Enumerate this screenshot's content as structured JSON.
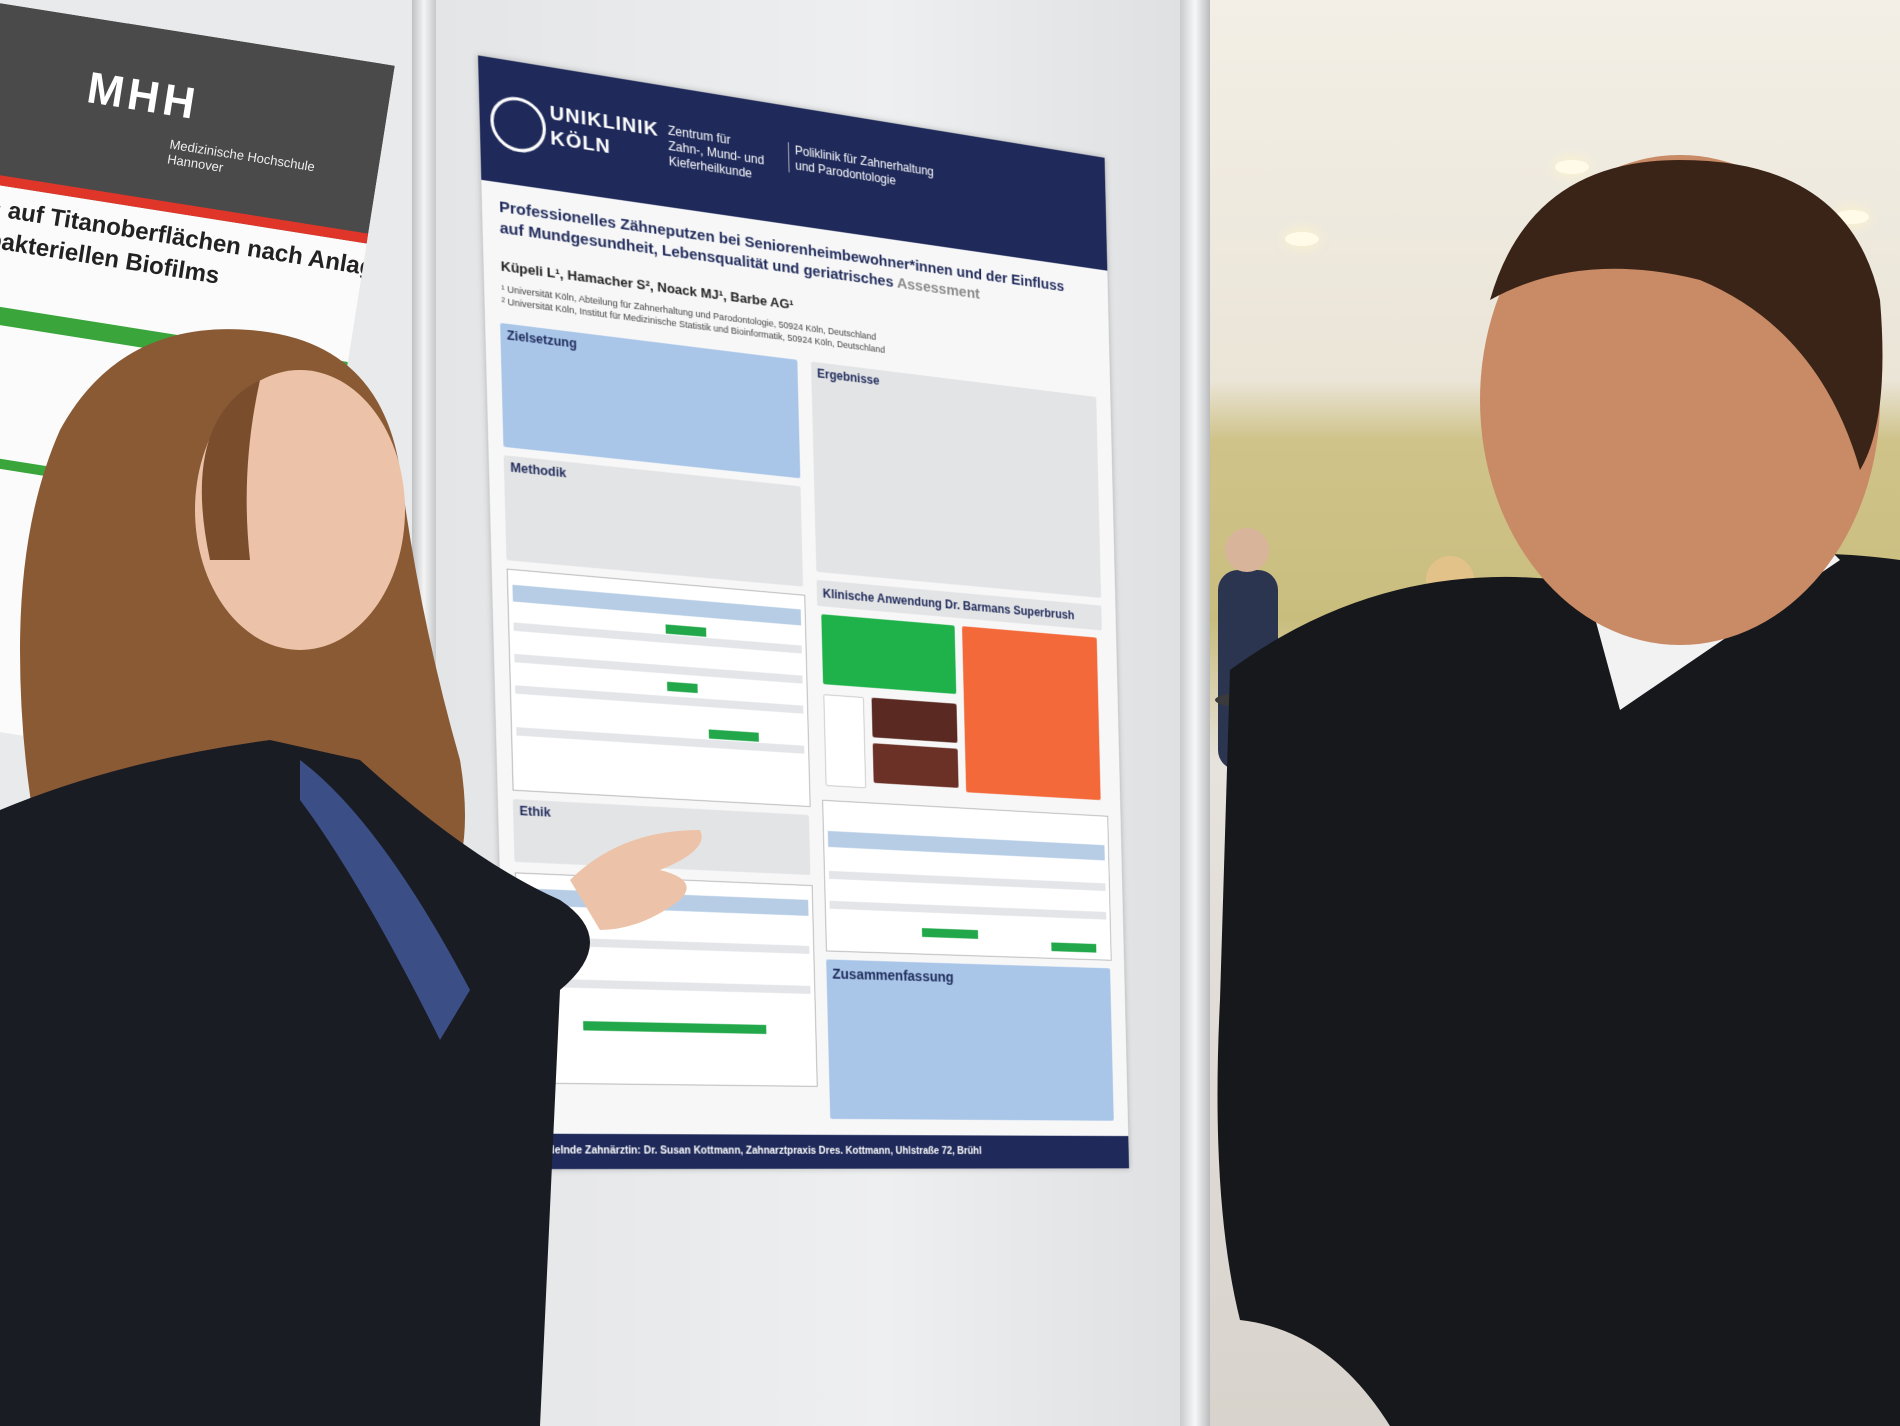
{
  "left_poster": {
    "logo": "MHH",
    "institution": "Medizinische Hochschule Hannover",
    "title_line1": "erts auf Titanoberflächen nach Anlagerung eines",
    "title_line2": "en bakteriellen Biofilms"
  },
  "poster": {
    "header": {
      "brand_line1": "UNIKLINIK",
      "brand_line2": "KÖLN",
      "center": "Zentrum für Zahn-, Mund- und Kieferheilkunde",
      "clinic": "Poliklinik für Zahnerhaltung und Parodontologie"
    },
    "title": "Professionelles Zähneputzen bei Seniorenheimbewohner*innen und der Einfluss auf Mundgesundheit, Lebensqualität und geriatrisches",
    "title_end": "Assessment",
    "authors": "Küpeli L¹, Hamacher S², Noack MJ¹, Barbe AG¹",
    "affiliations": [
      "¹ Universität Köln, Abteilung für Zahnerhaltung und Parodontologie, 50924 Köln, Deutschland",
      "² Universität Köln, Institut für Medizinische Statistik und Bioinformatik, 50924 Köln, Deutschland"
    ],
    "sections": {
      "aim": "Zielsetzung",
      "methods": "Methodik",
      "ethics": "Ethik",
      "results": "Ergebnisse",
      "clinical": "Klinische Anwendung Dr. Barmans Superbrush",
      "summary": "Zusammenfassung"
    },
    "footer": "Behandelnde Zahnärztin: Dr. Susan Kottmann, Zahnarztpraxis Dres. Kottmann, Uhlstraße 72, Brühl"
  }
}
